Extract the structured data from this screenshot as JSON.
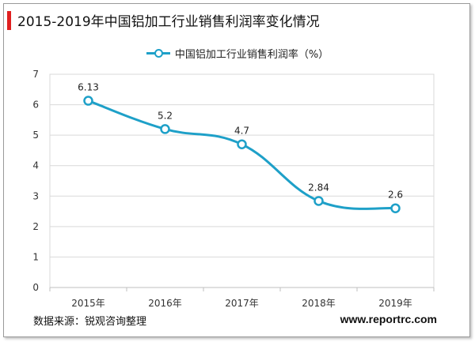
{
  "header": {
    "title": "2015-2019年中国铝加工行业销售利润率变化情况",
    "accent_color": "#e02020"
  },
  "chart_data": {
    "type": "line",
    "title": "2015-2019年中国铝加工行业销售利润率变化情况",
    "categories": [
      "2015年",
      "2016年",
      "2017年",
      "2018年",
      "2019年"
    ],
    "series": [
      {
        "name": "中国铝加工行业销售利润率（%）",
        "values": [
          6.13,
          5.2,
          4.7,
          2.84,
          2.6
        ],
        "labels": [
          "6.13",
          "5.2",
          "4.7",
          "2.84",
          "2.6"
        ],
        "color": "#1ea0c8",
        "smooth": true
      }
    ],
    "ylim": [
      0,
      7
    ],
    "yticks": [
      0,
      1,
      2,
      3,
      4,
      5,
      6,
      7
    ],
    "xlabel": "",
    "ylabel": "",
    "grid": true,
    "legend": "top-center"
  },
  "footer": {
    "source": "数据来源：锐观咨询整理",
    "website": "www.reportrc.com"
  }
}
